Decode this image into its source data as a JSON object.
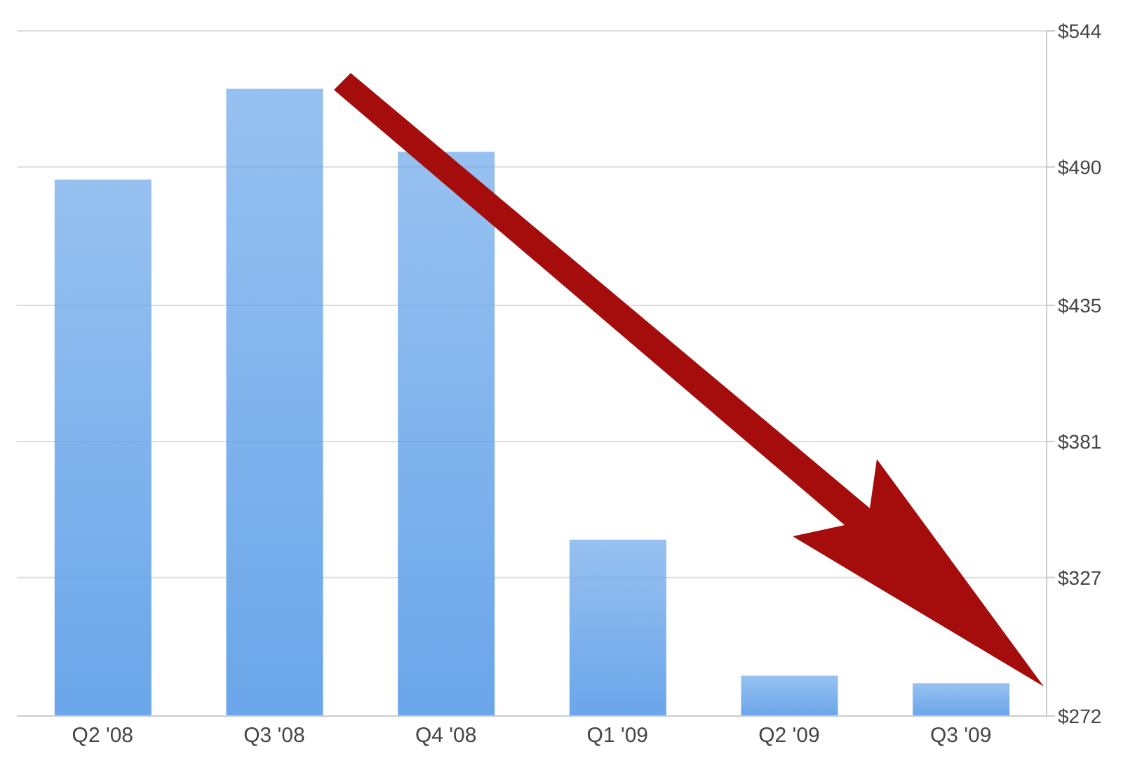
{
  "chart_data": {
    "type": "bar",
    "categories": [
      "Q2 '08",
      "Q3 '08",
      "Q4 '08",
      "Q1 '09",
      "Q2 '09",
      "Q3 '09"
    ],
    "values": [
      485,
      521,
      496,
      342,
      288,
      285
    ],
    "color": "#6aa6ea",
    "ylim": [
      272,
      544
    ],
    "yticks": [
      {
        "value": 272,
        "label": "$272"
      },
      {
        "value": 327,
        "label": "$327"
      },
      {
        "value": 381,
        "label": "$381"
      },
      {
        "value": 435,
        "label": "$435"
      },
      {
        "value": 490,
        "label": "$490"
      },
      {
        "value": 544,
        "label": "$544"
      }
    ],
    "grid": "y"
  }
}
